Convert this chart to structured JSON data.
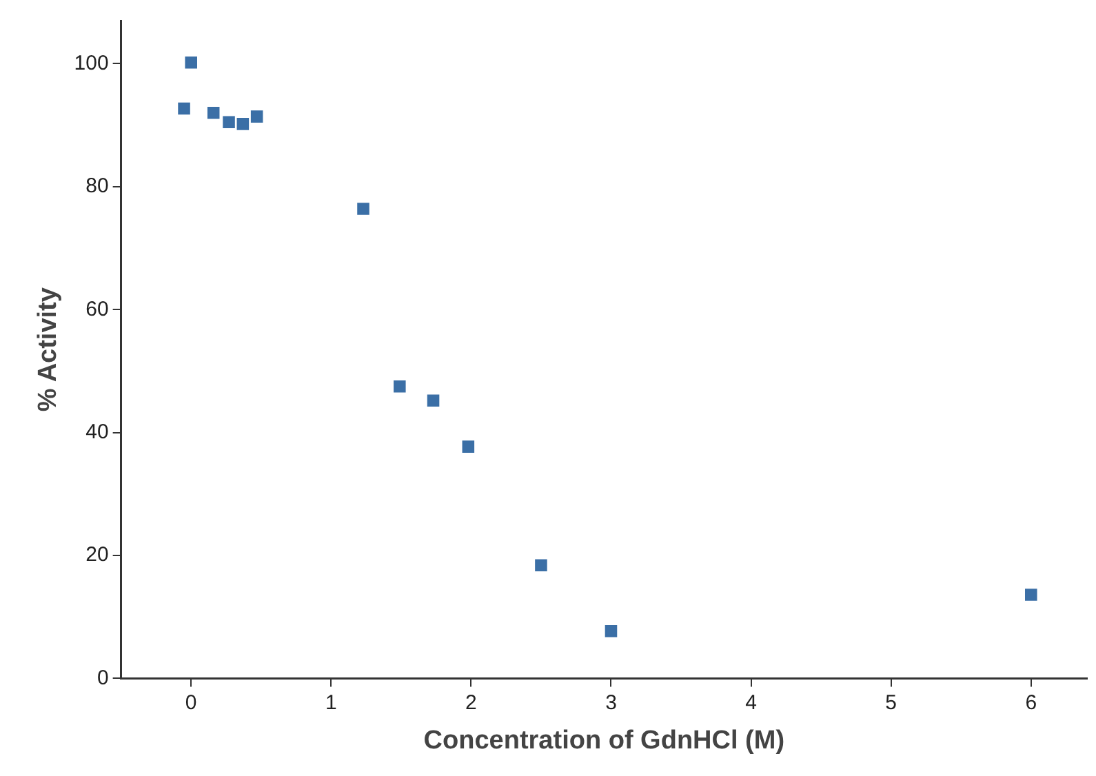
{
  "chart_data": {
    "type": "scatter",
    "xlabel": "Concentration of GdnHCl (M)",
    "ylabel": "% Activity",
    "x": [
      -0.05,
      0,
      0.16,
      0.27,
      0.37,
      0.47,
      1.23,
      1.49,
      1.73,
      1.98,
      2.5,
      3,
      6
    ],
    "series": [
      {
        "color": "#3b6fa6",
        "values": [
          92.7,
          100.2,
          92,
          90.5,
          90.2,
          91.4,
          76.4,
          47.5,
          45.2,
          37.7,
          18.4,
          7.7,
          13.6
        ]
      }
    ],
    "xlim": [
      -0.5,
      6.4
    ],
    "xticks": [
      0,
      1,
      2,
      3,
      4,
      5,
      6
    ],
    "ylim": [
      0,
      107
    ],
    "yticks": [
      0,
      20,
      40,
      60,
      80,
      100
    ],
    "marker": "square",
    "grid": false,
    "legend": false
  }
}
